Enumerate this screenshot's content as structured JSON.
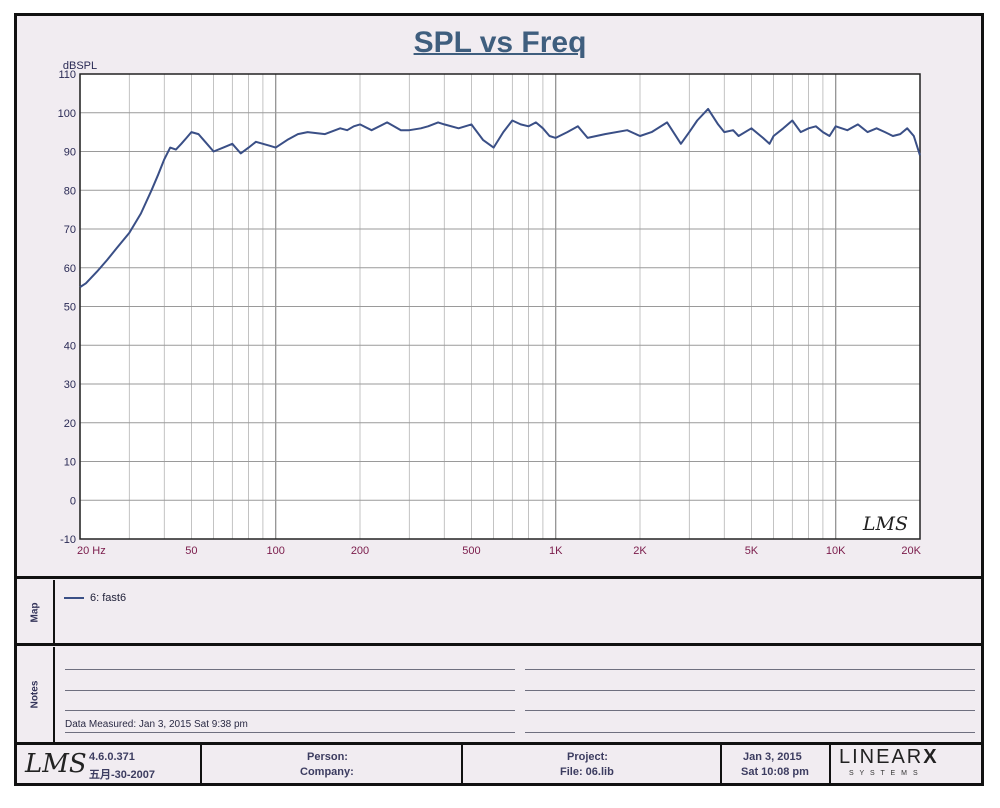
{
  "header": {
    "title": "SPL vs Freq"
  },
  "chart_data": {
    "type": "line",
    "title": "SPL vs Freq",
    "ylabel": "dBSPL",
    "xlabel": "",
    "x_scale": "log",
    "xlim": [
      20,
      20000
    ],
    "ylim": [
      -10,
      110
    ],
    "grid": true,
    "y_ticks": [
      "-10",
      "0",
      "10",
      "20",
      "30",
      "40",
      "50",
      "60",
      "70",
      "80",
      "90",
      "100",
      "110"
    ],
    "x_ticks": [
      {
        "value": 20,
        "label": "20  Hz"
      },
      {
        "value": 50,
        "label": "50"
      },
      {
        "value": 100,
        "label": "100"
      },
      {
        "value": 200,
        "label": "200"
      },
      {
        "value": 500,
        "label": "500"
      },
      {
        "value": 1000,
        "label": "1K"
      },
      {
        "value": 2000,
        "label": "2K"
      },
      {
        "value": 5000,
        "label": "5K"
      },
      {
        "value": 10000,
        "label": "10K"
      },
      {
        "value": 20000,
        "label": "20K"
      }
    ],
    "watermark": "LMS",
    "series": [
      {
        "name": "6:  fast6",
        "color": "#3a4f86",
        "x": [
          20,
          21,
          23,
          25,
          27,
          30,
          33,
          36,
          38,
          40,
          42,
          44,
          46,
          48,
          50,
          53,
          56,
          60,
          65,
          70,
          75,
          80,
          85,
          90,
          95,
          100,
          110,
          120,
          130,
          150,
          170,
          180,
          190,
          200,
          220,
          250,
          280,
          300,
          330,
          350,
          380,
          400,
          450,
          500,
          550,
          600,
          650,
          700,
          750,
          800,
          850,
          900,
          950,
          1000,
          1100,
          1200,
          1300,
          1500,
          1800,
          2000,
          2200,
          2500,
          2800,
          3000,
          3200,
          3500,
          3800,
          4000,
          4300,
          4500,
          5000,
          5500,
          5800,
          6000,
          6500,
          7000,
          7500,
          8000,
          8500,
          9000,
          9500,
          10000,
          11000,
          12000,
          13000,
          14000,
          15000,
          16000,
          17000,
          18000,
          19000,
          20000
        ],
        "y": [
          55,
          56,
          59,
          62,
          65,
          69,
          74,
          80,
          84,
          88,
          91,
          90.5,
          92,
          93.5,
          95,
          94.5,
          92.5,
          90,
          91,
          92,
          89.5,
          91,
          92.5,
          92,
          91.5,
          91,
          93,
          94.5,
          95,
          94.5,
          96,
          95.5,
          96.5,
          97,
          95.5,
          97.5,
          95.5,
          95.5,
          96,
          96.5,
          97.5,
          97,
          96,
          97,
          93,
          91,
          95,
          98,
          97,
          96.5,
          97.5,
          96,
          94,
          93.5,
          95,
          96.5,
          93.5,
          94.5,
          95.5,
          94,
          95,
          97.5,
          92,
          95,
          98,
          101,
          97,
          95,
          95.5,
          94,
          96,
          93.5,
          92,
          94,
          96,
          98,
          95,
          96,
          96.5,
          95,
          94,
          96.5,
          95.5,
          97,
          95,
          96,
          95,
          94,
          94.5,
          96,
          94,
          89
        ]
      }
    ]
  },
  "map_panel": {
    "label": "Map"
  },
  "notes_panel": {
    "label": "Notes",
    "data_measured": "Data Measured: Jan  3, 2015  Sat  9:38 pm"
  },
  "footer": {
    "logo": "LMS",
    "version": "4.6.0.371",
    "build_date": "五月-30-2007",
    "person_label": "Person:",
    "company_label": "Company:",
    "project_label": "Project:",
    "file_label": "File:   06.lib",
    "date": "Jan  3, 2015",
    "day_time": "Sat 10:08 pm",
    "brand_main": "LINEAR",
    "brand_x": "X",
    "brand_sub": "S Y S T E M S"
  }
}
